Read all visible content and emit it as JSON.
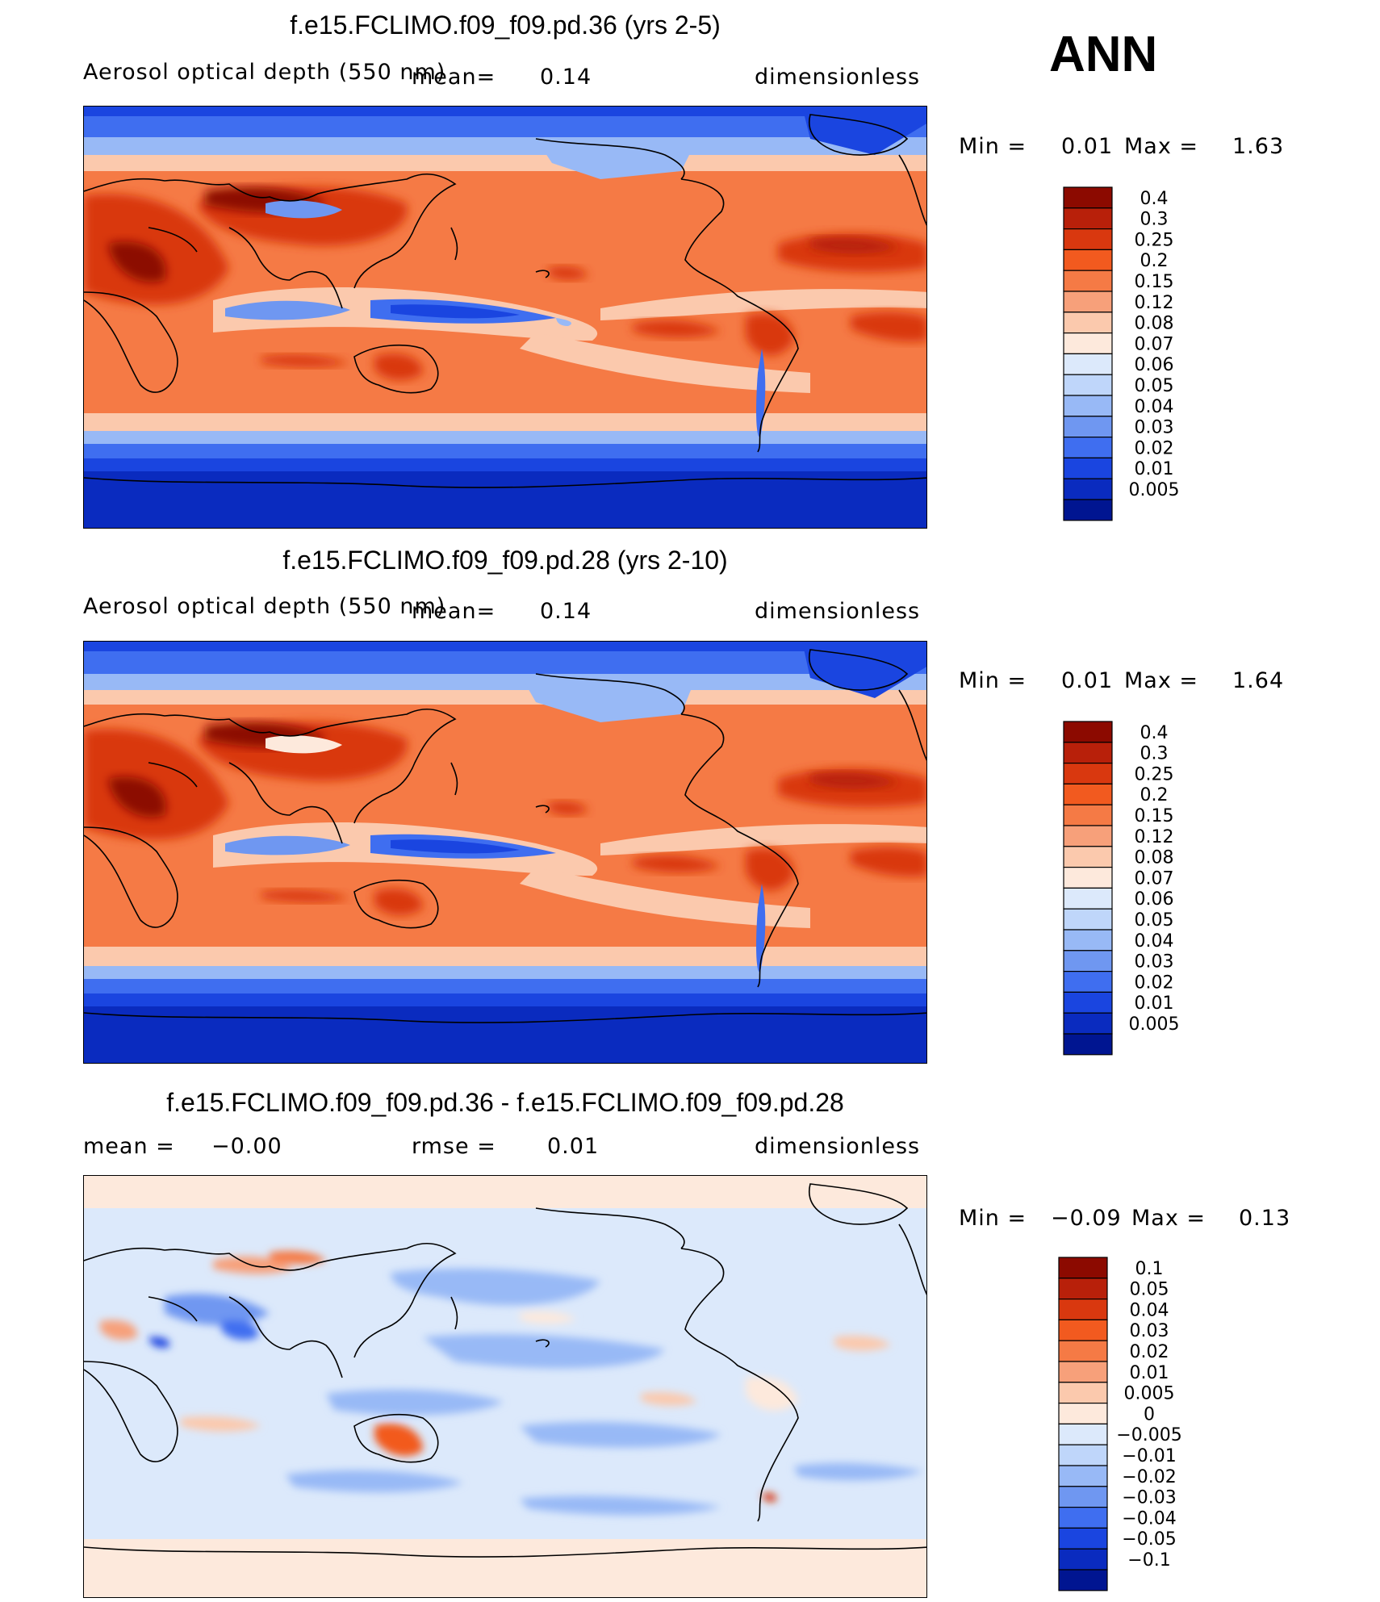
{
  "season": "ANN",
  "panels": [
    {
      "title": "f.e15.FCLIMO.f09_f09.pd.36 (yrs 2-5)",
      "variable": "Aerosol optical depth (550 nm)",
      "stat1_label": "mean",
      "stat1_value": "0.14",
      "units": "dimensionless",
      "min_label": "Min =",
      "min_value": "0.01",
      "max_label": "Max =",
      "max_value": "1.63"
    },
    {
      "title": "f.e15.FCLIMO.f09_f09.pd.28 (yrs 2-10)",
      "variable": "Aerosol optical depth (550 nm)",
      "stat1_label": "mean",
      "stat1_value": "0.14",
      "units": "dimensionless",
      "min_label": "Min =",
      "min_value": "0.01",
      "max_label": "Max =",
      "max_value": "1.64"
    },
    {
      "title": "f.e15.FCLIMO.f09_f09.pd.36 - f.e15.FCLIMO.f09_f09.pd.28",
      "stat1_label": "mean =",
      "stat1_value": "−0.00",
      "stat2_label": "rmse =",
      "stat2_value": "0.01",
      "units": "dimensionless",
      "min_label": "Min =",
      "min_value": "−0.09",
      "max_label": "Max =",
      "max_value": "0.13"
    }
  ],
  "chart_data": [
    {
      "type": "heatmap",
      "title": "f.e15.FCLIMO.f09_f09.pd.36 (yrs 2-5)",
      "field": "Aerosol optical depth (550 nm)",
      "units": "dimensionless",
      "mean": 0.14,
      "min": 0.01,
      "max": 1.63,
      "colorbar_levels": [
        "0.4",
        "0.3",
        "0.25",
        "0.2",
        "0.15",
        "0.12",
        "0.08",
        "0.07",
        "0.06",
        "0.05",
        "0.04",
        "0.03",
        "0.02",
        "0.01",
        "0.005"
      ],
      "colorbar_colors": [
        "#8c0a00",
        "#b8200a",
        "#d9380f",
        "#f25a1f",
        "#f57a45",
        "#f7a07a",
        "#fbc9ad",
        "#fde9dc",
        "#dce9fb",
        "#bfd6fa",
        "#98b9f6",
        "#6f97f1",
        "#3f6ef0",
        "#1a45e0",
        "#0a2bbf",
        "#001591"
      ]
    },
    {
      "type": "heatmap",
      "title": "f.e15.FCLIMO.f09_f09.pd.28 (yrs 2-10)",
      "field": "Aerosol optical depth (550 nm)",
      "units": "dimensionless",
      "mean": 0.14,
      "min": 0.01,
      "max": 1.64,
      "colorbar_levels": [
        "0.4",
        "0.3",
        "0.25",
        "0.2",
        "0.15",
        "0.12",
        "0.08",
        "0.07",
        "0.06",
        "0.05",
        "0.04",
        "0.03",
        "0.02",
        "0.01",
        "0.005"
      ],
      "colorbar_colors": [
        "#8c0a00",
        "#b8200a",
        "#d9380f",
        "#f25a1f",
        "#f57a45",
        "#f7a07a",
        "#fbc9ad",
        "#fde9dc",
        "#dce9fb",
        "#bfd6fa",
        "#98b9f6",
        "#6f97f1",
        "#3f6ef0",
        "#1a45e0",
        "#0a2bbf",
        "#001591"
      ]
    },
    {
      "type": "heatmap",
      "title": "f.e15.FCLIMO.f09_f09.pd.36 - f.e15.FCLIMO.f09_f09.pd.28",
      "units": "dimensionless",
      "mean": -0.0,
      "rmse": 0.01,
      "min": -0.09,
      "max": 0.13,
      "colorbar_levels": [
        "0.1",
        "0.05",
        "0.04",
        "0.03",
        "0.02",
        "0.01",
        "0.005",
        "0",
        "−0.005",
        "−0.01",
        "−0.02",
        "−0.03",
        "−0.04",
        "−0.05",
        "−0.1"
      ],
      "colorbar_colors": [
        "#8c0a00",
        "#b8200a",
        "#d9380f",
        "#f25a1f",
        "#f57a45",
        "#f7a07a",
        "#fbc9ad",
        "#fde9dc",
        "#dce9fb",
        "#bfd6fa",
        "#98b9f6",
        "#6f97f1",
        "#3f6ef0",
        "#1a45e0",
        "#0a2bbf",
        "#001591"
      ]
    }
  ]
}
